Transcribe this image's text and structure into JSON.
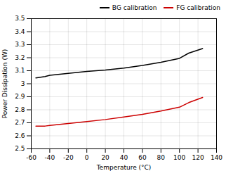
{
  "chart_data": {
    "type": "line",
    "x": [
      -55,
      -45,
      -40,
      -20,
      0,
      20,
      40,
      60,
      80,
      100,
      110,
      125
    ],
    "series": [
      {
        "name": "BG calibration",
        "color": "#000000",
        "values": [
          3.045,
          3.055,
          3.065,
          3.08,
          3.095,
          3.105,
          3.12,
          3.14,
          3.165,
          3.195,
          3.235,
          3.27
        ]
      },
      {
        "name": "FG calibration",
        "color": "#cc0000",
        "values": [
          2.675,
          2.675,
          2.68,
          2.695,
          2.71,
          2.725,
          2.745,
          2.765,
          2.79,
          2.82,
          2.855,
          2.895
        ]
      }
    ],
    "xlabel": "Temperature (°C)",
    "ylabel": "Power Dissipation (W)",
    "xlim": [
      -60,
      140
    ],
    "ylim": [
      2.5,
      3.5
    ],
    "xticks": [
      -60,
      -40,
      -20,
      0,
      20,
      40,
      60,
      80,
      100,
      120,
      140
    ],
    "yticks": [
      2.5,
      2.6,
      2.7,
      2.8,
      2.9,
      3,
      3.1,
      3.2,
      3.3,
      3.4,
      3.5
    ],
    "grid": true,
    "legend": "upper right"
  }
}
